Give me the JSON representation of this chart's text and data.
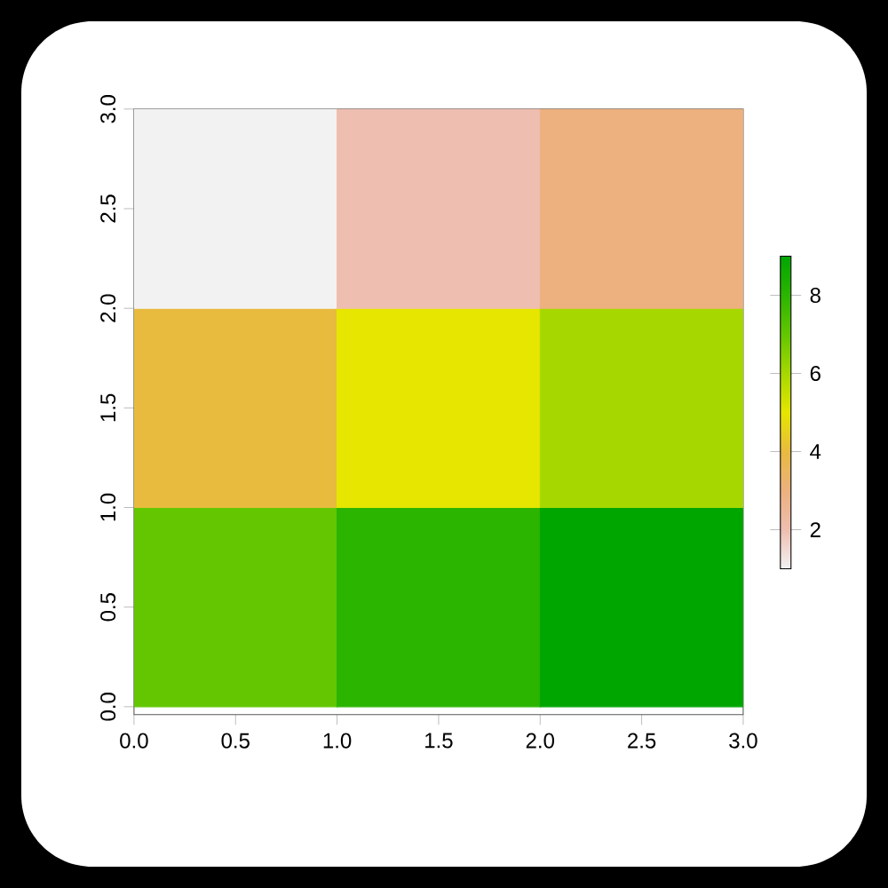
{
  "chart_data": {
    "type": "heatmap",
    "cells": [
      [
        1,
        2,
        3
      ],
      [
        4,
        5,
        6
      ],
      [
        7,
        8,
        9
      ]
    ],
    "xlim": [
      0,
      3
    ],
    "ylim": [
      -0.04,
      3
    ],
    "xticks": [
      {
        "value": 0,
        "label": "0.0"
      },
      {
        "value": 0.5,
        "label": "0.5"
      },
      {
        "value": 1,
        "label": "1.0"
      },
      {
        "value": 1.5,
        "label": "1.5"
      },
      {
        "value": 2,
        "label": "2.0"
      },
      {
        "value": 2.5,
        "label": "2.5"
      },
      {
        "value": 3,
        "label": "3.0"
      }
    ],
    "yticks": [
      {
        "value": 0,
        "label": "0.0"
      },
      {
        "value": 0.5,
        "label": "0.5"
      },
      {
        "value": 1,
        "label": "1.0"
      },
      {
        "value": 1.5,
        "label": "1.5"
      },
      {
        "value": 2,
        "label": "2.0"
      },
      {
        "value": 2.5,
        "label": "2.5"
      },
      {
        "value": 3,
        "label": "3.0"
      }
    ],
    "clim": [
      1,
      9
    ],
    "cticks": [
      2,
      4,
      6,
      8
    ]
  }
}
